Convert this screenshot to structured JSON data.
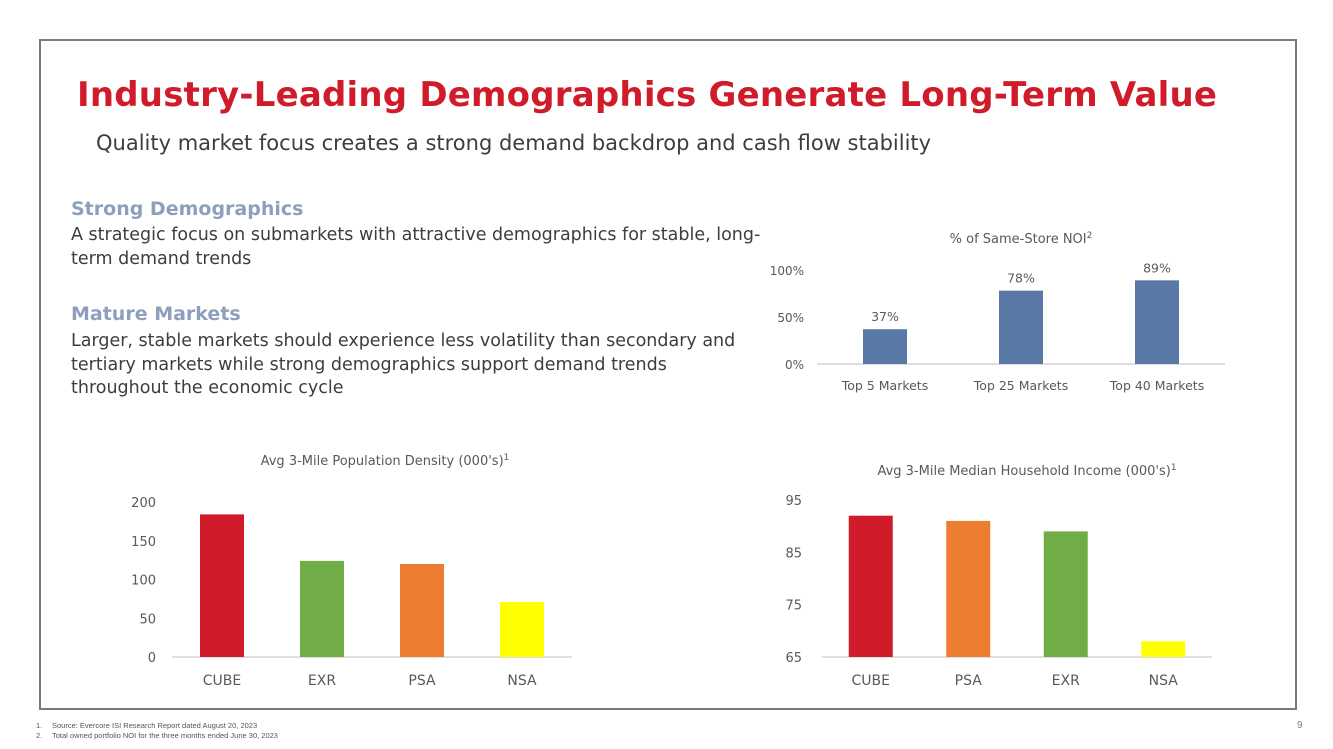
{
  "colors": {
    "title": "#d01c2a",
    "section_head": "#8d9fbd",
    "axis": "#bfbfbf",
    "tick_text": "#595959",
    "blue_bar": "#5a78a6",
    "cube": "#d01c2a",
    "exr": "#70ad47",
    "psa": "#ed7d31",
    "nsa": "#ffff00"
  },
  "header": {
    "title": "Industry-Leading Demographics Generate Long-Term Value",
    "subtitle": "Quality market focus creates a strong demand backdrop and cash flow stability"
  },
  "sections": [
    {
      "heading": "Strong Demographics",
      "body": "A strategic focus on submarkets with attractive demographics for stable, long-term demand trends"
    },
    {
      "heading": "Mature Markets",
      "body": "Larger, stable markets should experience less volatility than secondary and tertiary markets while strong demographics support demand trends throughout the economic cycle"
    }
  ],
  "chart_data": [
    {
      "id": "noi",
      "type": "bar",
      "title": "% of Same-Store NOI",
      "title_sup": "2",
      "categories": [
        "Top 5 Markets",
        "Top 25 Markets",
        "Top 40 Markets"
      ],
      "values": [
        37,
        78,
        89
      ],
      "data_labels": [
        "37%",
        "78%",
        "89%"
      ],
      "yticks": [
        "0%",
        "50%",
        "100%"
      ],
      "ylim": [
        0,
        100
      ],
      "colors": [
        "#5a78a6",
        "#5a78a6",
        "#5a78a6"
      ]
    },
    {
      "id": "density",
      "type": "bar",
      "title": "Avg 3-Mile Population Density (000's)",
      "title_sup": "1",
      "categories": [
        "CUBE",
        "EXR",
        "PSA",
        "NSA"
      ],
      "values": [
        184,
        124,
        120,
        71
      ],
      "yticks": [
        "0",
        "50",
        "100",
        "150",
        "200"
      ],
      "ylim": [
        0,
        200
      ],
      "colors": [
        "#d01c2a",
        "#70ad47",
        "#ed7d31",
        "#ffff00"
      ]
    },
    {
      "id": "income",
      "type": "bar",
      "title": "Avg 3-Mile Median Household Income (000's)",
      "title_sup": "1",
      "categories": [
        "CUBE",
        "PSA",
        "EXR",
        "NSA"
      ],
      "values": [
        92,
        91,
        89,
        68
      ],
      "yticks": [
        "65",
        "75",
        "85",
        "95"
      ],
      "ylim": [
        65,
        95
      ],
      "colors": [
        "#d01c2a",
        "#ed7d31",
        "#70ad47",
        "#ffff00"
      ]
    }
  ],
  "footnotes": [
    {
      "num": "1.",
      "text": "Source: Evercore ISI Research Report dated August 20, 2023"
    },
    {
      "num": "2.",
      "text": "Total owned portfolio NOI for the three months ended June 30, 2023"
    }
  ],
  "page_number": "9"
}
